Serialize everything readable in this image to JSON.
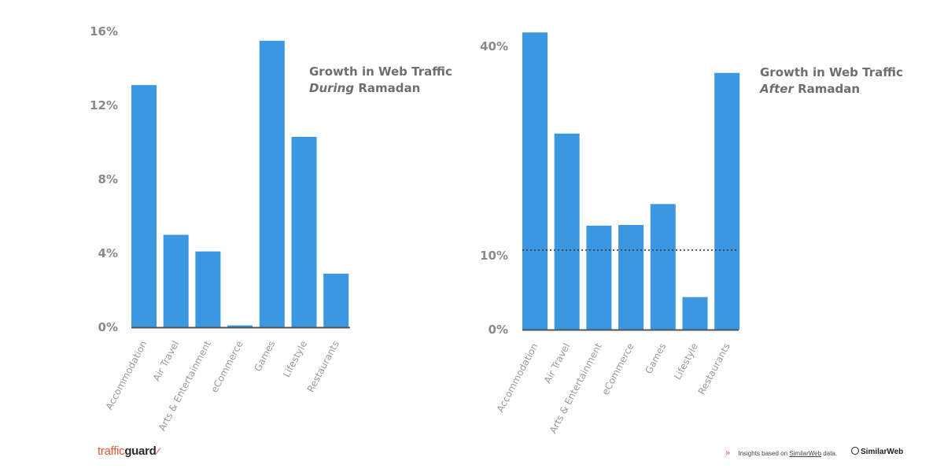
{
  "chart_data": [
    {
      "type": "bar",
      "title": "Growth in Web Traffic",
      "title_emphasis": "During",
      "title_suffix": "Ramadan",
      "categories": [
        "Accommodation",
        "Air Travel",
        "Arts & Entertainment",
        "eCommerce",
        "Games",
        "Lifestyle",
        "Restaurants"
      ],
      "values": [
        13.1,
        5.0,
        4.1,
        0.1,
        15.5,
        10.3,
        2.9
      ],
      "unit": "%",
      "yticks": [
        "0%",
        "4%",
        "8%",
        "12%",
        "16%"
      ],
      "ytick_values": [
        0,
        4,
        8,
        12,
        16
      ],
      "ylim": [
        0,
        16
      ],
      "color": "#3b97e0",
      "grid": false
    },
    {
      "type": "bar",
      "title": "Growth in Web Traffic",
      "title_emphasis": "After",
      "title_suffix": "Ramadan",
      "categories": [
        "Accommodation",
        "Air Travel",
        "Arts & Entertainment",
        "eCommerce",
        "Games",
        "Lifestyle",
        "Restaurants"
      ],
      "values": [
        42.0,
        27.5,
        14.3,
        14.4,
        17.4,
        4.4,
        36.2
      ],
      "unit": "%",
      "yticks": [
        "0%",
        "10%",
        "40%"
      ],
      "ytick_values": [
        0,
        10,
        40
      ],
      "ylim": [
        0,
        40
      ],
      "reference_line": 10.8,
      "color": "#3b97e0",
      "grid": false
    }
  ],
  "footer": {
    "brand_part1": "traffic",
    "brand_part2": "guard",
    "credit_prefix": "Insights based on",
    "credit_link": "SimilarWeb",
    "credit_suffix": "data.",
    "partner_logo": "SimilarWeb",
    "chevron": "»"
  },
  "colors": {
    "bar": "#3b97e0",
    "accent": "#e05a3c",
    "text": "#6e6e6e",
    "axis": "#555555"
  }
}
